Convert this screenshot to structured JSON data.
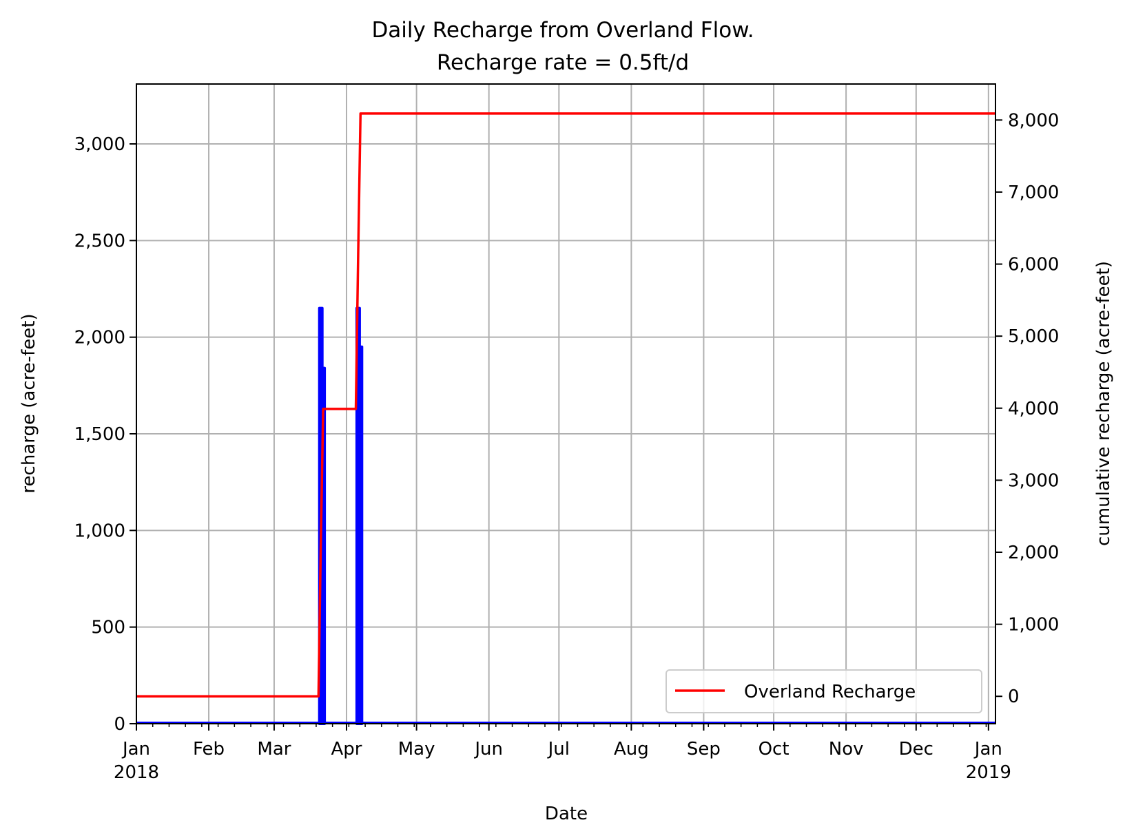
{
  "chart_data": {
    "type": "line",
    "title": [
      "Daily Recharge from Overland Flow.",
      "Recharge rate = 0.5ft/d"
    ],
    "xlabel": "Date",
    "ylabel_left": "recharge (acre-feet)",
    "ylabel_right": "cumulative recharge (acre-feet)",
    "x_range": [
      "2018-01-01",
      "2019-01-04"
    ],
    "ylim_left": [
      0,
      3310
    ],
    "ylim_right": [
      -380,
      8500
    ],
    "grid": true,
    "legend_position": "bottom-right",
    "x_ticks": [
      {
        "date": "2018-01-01",
        "label": "Jan",
        "year": "2018"
      },
      {
        "date": "2018-02-01",
        "label": "Feb",
        "year": ""
      },
      {
        "date": "2018-03-01",
        "label": "Mar",
        "year": ""
      },
      {
        "date": "2018-04-01",
        "label": "Apr",
        "year": ""
      },
      {
        "date": "2018-05-01",
        "label": "May",
        "year": ""
      },
      {
        "date": "2018-06-01",
        "label": "Jun",
        "year": ""
      },
      {
        "date": "2018-07-01",
        "label": "Jul",
        "year": ""
      },
      {
        "date": "2018-08-01",
        "label": "Aug",
        "year": ""
      },
      {
        "date": "2018-09-01",
        "label": "Sep",
        "year": ""
      },
      {
        "date": "2018-10-01",
        "label": "Oct",
        "year": ""
      },
      {
        "date": "2018-11-01",
        "label": "Nov",
        "year": ""
      },
      {
        "date": "2018-12-01",
        "label": "Dec",
        "year": ""
      },
      {
        "date": "2019-01-01",
        "label": "Jan",
        "year": "2019"
      }
    ],
    "y_ticks_left": [
      {
        "value": 0,
        "label": "0"
      },
      {
        "value": 500,
        "label": "500"
      },
      {
        "value": 1000,
        "label": "1,000"
      },
      {
        "value": 1500,
        "label": "1,500"
      },
      {
        "value": 2000,
        "label": "2,000"
      },
      {
        "value": 2500,
        "label": "2,500"
      },
      {
        "value": 3000,
        "label": "3,000"
      }
    ],
    "y_ticks_right": [
      {
        "value": 0,
        "label": "0"
      },
      {
        "value": 1000,
        "label": "1,000"
      },
      {
        "value": 2000,
        "label": "2,000"
      },
      {
        "value": 3000,
        "label": "3,000"
      },
      {
        "value": 4000,
        "label": "4,000"
      },
      {
        "value": 5000,
        "label": "5,000"
      },
      {
        "value": 6000,
        "label": "6,000"
      },
      {
        "value": 7000,
        "label": "7,000"
      },
      {
        "value": 8000,
        "label": "8,000"
      }
    ],
    "daily_recharge": {
      "axis": "left",
      "color": "#0000ff",
      "nonzero_points": [
        {
          "date": "2018-03-21",
          "value": 2150
        },
        {
          "date": "2018-03-22",
          "value": 1840
        },
        {
          "date": "2018-04-06",
          "value": 2150
        },
        {
          "date": "2018-04-07",
          "value": 1950
        }
      ],
      "baseline_value": 0
    },
    "cumulative_recharge": {
      "name": "Overland Recharge",
      "axis": "right",
      "color": "#ff0000",
      "points": [
        {
          "date": "2018-01-01",
          "value": 0
        },
        {
          "date": "2018-03-20",
          "value": 0
        },
        {
          "date": "2018-03-21",
          "value": 2150
        },
        {
          "date": "2018-03-22",
          "value": 3990
        },
        {
          "date": "2018-04-05",
          "value": 3990
        },
        {
          "date": "2018-04-06",
          "value": 6140
        },
        {
          "date": "2018-04-07",
          "value": 8090
        },
        {
          "date": "2019-01-04",
          "value": 8090
        }
      ]
    }
  }
}
